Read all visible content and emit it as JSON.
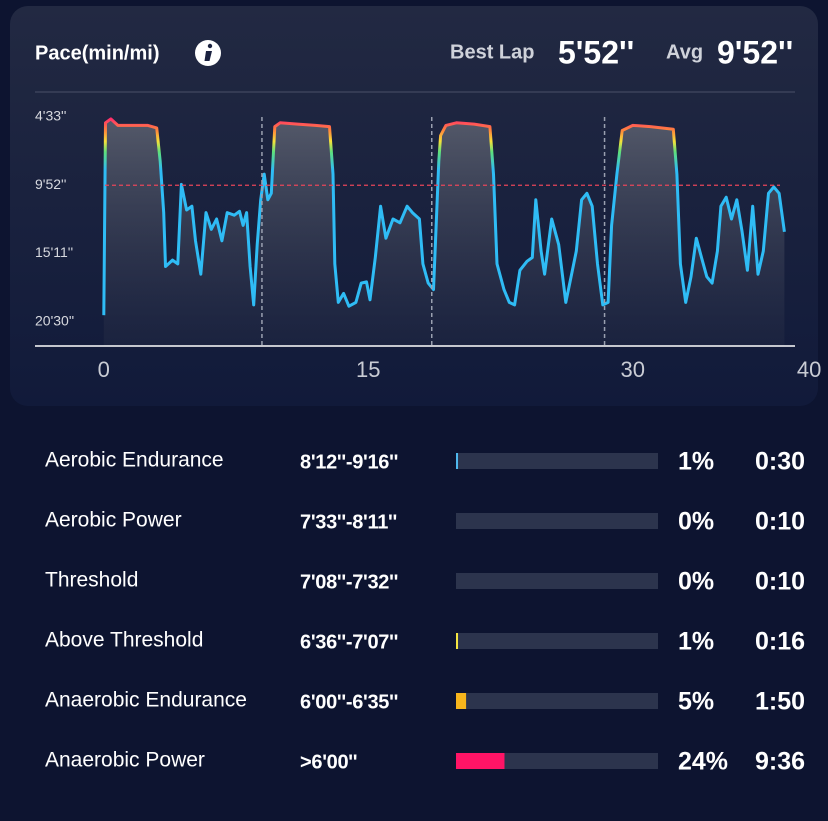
{
  "chart_data": {
    "type": "line",
    "title": "Pace(min/mi)",
    "header": {
      "best_lap_label": "Best Lap",
      "best_lap": "5'52''",
      "avg_label": "Avg",
      "avg": "9'52''"
    },
    "ylim": [
      22.4,
      2.6
    ],
    "yticks": [
      {
        "value": 4.55,
        "label": "4'33''"
      },
      {
        "value": 9.867,
        "label": "9'52''"
      },
      {
        "value": 15.183,
        "label": "15'11''"
      },
      {
        "value": 20.5,
        "label": "20'30''"
      }
    ],
    "xlim": [
      -3.9,
      39.2
    ],
    "xticks": [
      0,
      15,
      30,
      40
    ],
    "avg_line": 9.867,
    "laps": [
      8.97,
      18.6,
      28.4
    ],
    "series": [
      {
        "color": "#2fbcf5",
        "x": [
          0,
          0.1,
          0.4,
          0.8,
          1.5,
          2.5,
          3.0,
          3.2,
          3.4,
          3.5,
          3.9,
          4.2,
          4.4,
          4.7,
          5.0,
          5.2,
          5.5,
          5.8,
          6.1,
          6.4,
          6.7,
          7.0,
          7.4,
          7.7,
          7.9,
          8.1,
          8.3,
          8.5,
          8.7,
          8.9,
          9.1,
          9.3,
          9.5,
          9.7,
          10.0,
          11,
          12,
          12.8,
          13.0,
          13.1,
          13.3,
          13.6,
          13.9,
          14.3,
          14.6,
          14.9,
          15.1,
          15.4,
          15.7,
          16.0,
          16.4,
          16.8,
          17.2,
          17.5,
          17.9,
          18.1,
          18.4,
          18.7,
          19.0,
          19.1,
          19.4,
          20,
          21,
          21.9,
          22.1,
          22.3,
          22.7,
          23.0,
          23.3,
          23.6,
          24.0,
          24.3,
          24.5,
          24.8,
          25.0,
          25.4,
          25.8,
          26.2,
          26.5,
          26.8,
          27.1,
          27.4,
          27.7,
          28.0,
          28.3,
          28.6,
          28.8,
          29.1,
          29.4,
          30,
          31,
          32.3,
          32.5,
          32.7,
          33.0,
          33.3,
          33.6,
          33.9,
          34.2,
          34.5,
          34.8,
          35.0,
          35.3,
          35.6,
          35.9,
          36.2,
          36.5,
          36.8,
          37.1,
          37.4,
          37.7,
          38.0,
          38.3,
          38.6
        ],
        "values": [
          20.0,
          5.0,
          4.7,
          5.2,
          5.2,
          5.2,
          5.4,
          8,
          12,
          16.2,
          15.7,
          16.0,
          9.8,
          11.8,
          11.5,
          14.2,
          16.8,
          12,
          13.3,
          12.5,
          14.2,
          12.0,
          12.2,
          11.9,
          13.0,
          12.0,
          16.2,
          19.2,
          14.5,
          11.0,
          9.0,
          11.0,
          10.5,
          5.3,
          5.0,
          5.1,
          5.2,
          5.3,
          9,
          16,
          19.0,
          18.3,
          19.3,
          19.0,
          17.5,
          17.4,
          18.8,
          15.5,
          11.5,
          14,
          12.5,
          12.8,
          11.5,
          12,
          12.5,
          16,
          17.5,
          18,
          8,
          6,
          5.2,
          5.0,
          5.1,
          5.3,
          9,
          16,
          18,
          19,
          19.2,
          16.5,
          15.8,
          15.5,
          11,
          15,
          16.8,
          12.5,
          14.5,
          19,
          17,
          15,
          11,
          10.5,
          11.5,
          16,
          19.2,
          19,
          13,
          9,
          5.6,
          5.2,
          5.3,
          5.5,
          9,
          16,
          19.0,
          17,
          14,
          15.5,
          17,
          17.5,
          15,
          11.5,
          10.8,
          12.5,
          11.0,
          13.5,
          16.5,
          11.5,
          16.8,
          15.0,
          10.5,
          10.0,
          10.5,
          13.5
        ]
      }
    ]
  },
  "zones": {
    "xlim": [
      0,
      100
    ],
    "names": [
      "Aerobic Endurance",
      "Aerobic Power",
      "Threshold",
      "Above Threshold",
      "Anaerobic Endurance",
      "Anaerobic Power"
    ],
    "ranges": [
      "8'12''-9'16''",
      "7'33''-8'11''",
      "7'08''-7'32''",
      "6'36''-7'07''",
      "6'00''-6'35''",
      ">6'00''"
    ],
    "values": [
      1,
      0,
      0,
      1,
      5,
      24
    ],
    "value_labels": [
      "1%",
      "0%",
      "0%",
      "1%",
      "5%",
      "24%"
    ],
    "times": [
      "0:30",
      "0:10",
      "0:10",
      "0:16",
      "1:50",
      "9:36"
    ],
    "colors": [
      "#4fb8ee",
      "#8ad35a",
      "#f2e14a",
      "#f5e642",
      "#f7b51c",
      "#ff1466"
    ]
  }
}
